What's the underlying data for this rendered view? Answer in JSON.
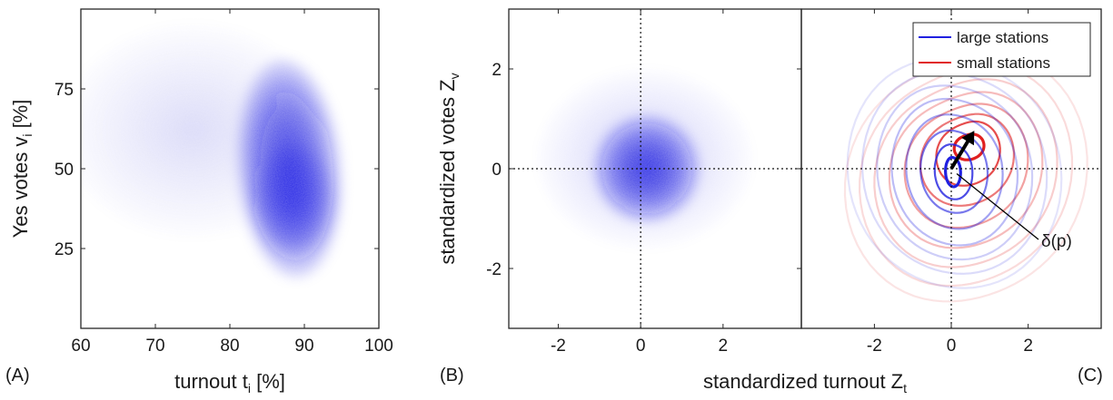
{
  "chart_data": [
    {
      "panel": "(A)",
      "type": "heatmap",
      "xlabel": "turnout t",
      "xlabel_sub": "i",
      "xlabel_tail": " [%]",
      "ylabel": "Yes votes v",
      "ylabel_sub": "i",
      "ylabel_tail": " [%]",
      "xlim": [
        60,
        100
      ],
      "ylim": [
        0,
        100
      ],
      "xticks": [
        60,
        70,
        80,
        90,
        100
      ],
      "yticks": [
        25,
        50,
        75
      ],
      "color": "#1010e0",
      "blobs": [
        {
          "x": 88,
          "y": 50,
          "sx": 4.0,
          "sy": 27,
          "w": 1.0,
          "tilt": -0.08
        },
        {
          "x": 88.5,
          "y": 40,
          "sx": 3.5,
          "sy": 14,
          "w": 0.5,
          "tilt": 0.0
        },
        {
          "x": 75,
          "y": 62,
          "sx": 10,
          "sy": 26,
          "w": 0.1,
          "tilt": 0.0
        }
      ]
    },
    {
      "panel": "(B)",
      "type": "heatmap",
      "xlabel": "standardized turnout Z",
      "xlabel_sub": "t",
      "ylabel": "standardized votes Z",
      "ylabel_sub": "v",
      "xlim": [
        -3.2,
        3.9
      ],
      "ylim": [
        -3.2,
        3.2
      ],
      "xticks": [
        -2,
        0,
        2
      ],
      "yticks": [
        -2,
        0,
        2
      ],
      "crosshair": [
        0,
        0
      ],
      "color": "#1010e0",
      "blobs": [
        {
          "x": 0.15,
          "y": 0.0,
          "sx": 0.75,
          "sy": 0.85,
          "w": 1.0,
          "tilt": 0.0
        },
        {
          "x": 0.1,
          "y": 0.2,
          "sx": 1.5,
          "sy": 1.4,
          "w": 0.14,
          "tilt": 0.0
        }
      ]
    },
    {
      "panel": "(C)",
      "type": "contour",
      "xlim": [
        -3.9,
        3.9
      ],
      "ylim": [
        -3.2,
        3.2
      ],
      "xticks": [
        -2,
        0,
        2
      ],
      "crosshair": [
        0,
        0
      ],
      "series": [
        {
          "name": "large stations",
          "color": "#2020e0",
          "center": [
            0.05,
            -0.05
          ]
        },
        {
          "name": "small stations",
          "color": "#e02020",
          "center": [
            0.45,
            0.45
          ]
        }
      ],
      "legend_position": "top-right",
      "arrow": {
        "from": [
          0,
          0
        ],
        "to": [
          0.55,
          0.7
        ]
      },
      "annotation": {
        "text": "δ(p)",
        "at": [
          0.0,
          -0.1
        ]
      }
    }
  ],
  "panel_labels": [
    "(A)",
    "(B)",
    "(C)"
  ]
}
